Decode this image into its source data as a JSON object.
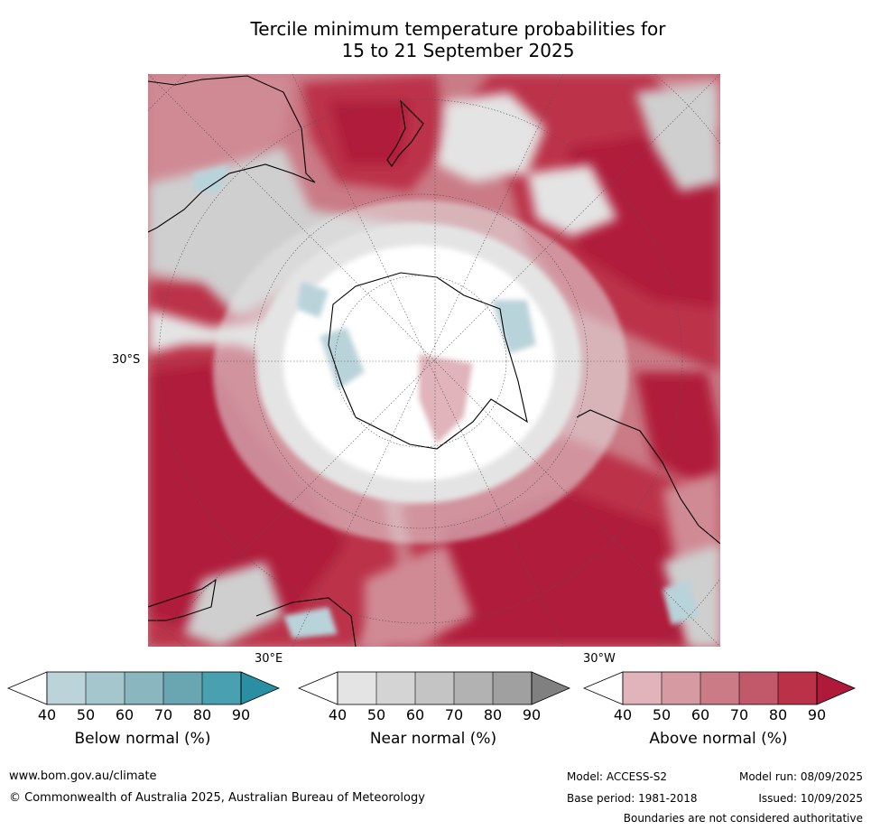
{
  "title_line1": "Tercile minimum temperature probabilities for",
  "title_line2": "15 to 21 September 2025",
  "map": {
    "lat_label": "30°S",
    "lon_label_east": "30°E",
    "lon_label_west": "30°W",
    "colors": {
      "white": "#ffffff",
      "near_light": "#e4e4e4",
      "near_mid": "#cfcfcf",
      "above_light": "#e0b4ba",
      "above_mid": "#d08a94",
      "above_strong": "#c65b6c",
      "above_deep": "#bb3148",
      "above_max": "#b01a3a",
      "below_light": "#b9d3da",
      "coast": "#000000"
    }
  },
  "legends": [
    {
      "title": "Below normal (%)",
      "ticks": [
        "40",
        "50",
        "60",
        "70",
        "80",
        "90"
      ],
      "colors": [
        "#ffffff",
        "#bcd3da",
        "#a6c6cd",
        "#89b6bf",
        "#6aa6b2",
        "#48a0b0",
        "#2a8fa3"
      ]
    },
    {
      "title": "Near normal (%)",
      "ticks": [
        "40",
        "50",
        "60",
        "70",
        "80",
        "90"
      ],
      "colors": [
        "#ffffff",
        "#e4e4e4",
        "#d4d4d4",
        "#c4c4c4",
        "#b2b2b2",
        "#a0a0a0",
        "#808080"
      ]
    },
    {
      "title": "Above normal (%)",
      "ticks": [
        "40",
        "50",
        "60",
        "70",
        "80",
        "90"
      ],
      "colors": [
        "#ffffff",
        "#e0b4ba",
        "#d59aa2",
        "#ca7b86",
        "#c1596a",
        "#bb3148",
        "#b01a3a"
      ]
    }
  ],
  "footer": {
    "website": "www.bom.gov.au/climate",
    "copyright": "© Commonwealth of Australia 2025, Australian Bureau of Meteorology",
    "model": "Model: ACCESS-S2",
    "base_period": "Base period: 1981-2018",
    "model_run": "Model run: 08/09/2025",
    "issued": "Issued: 10/09/2025",
    "disclaimer": "Boundaries are not considered authoritative"
  }
}
